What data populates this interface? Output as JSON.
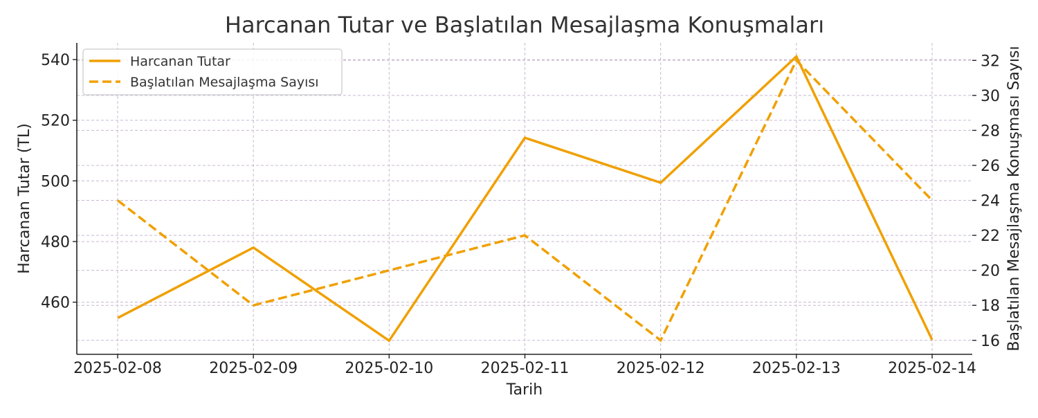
{
  "chart_data": {
    "type": "line",
    "title": "Harcanan Tutar ve Başlatılan Mesajlaşma Konuşmaları",
    "xlabel": "Tarih",
    "ylabel": "Harcanan Tutar (TL)",
    "y2label": "Başlatılan Mesajlaşma Konuşması Sayısı",
    "categories": [
      "2025-02-08",
      "2025-02-09",
      "2025-02-10",
      "2025-02-11",
      "2025-02-12",
      "2025-02-13",
      "2025-02-14"
    ],
    "ylim": [
      442.8,
      545.5
    ],
    "y2lim": [
      15.2,
      33.0
    ],
    "yticks": [
      460,
      480,
      500,
      520,
      540
    ],
    "y2ticks": [
      16,
      18,
      20,
      22,
      24,
      26,
      28,
      30,
      32
    ],
    "grid": true,
    "legend_position": "upper-left",
    "series": [
      {
        "name": "Harcanan Tutar",
        "axis": "left",
        "style": "solid",
        "color": "#f0a000",
        "values": [
          454.8,
          478.0,
          447.3,
          514.2,
          499.4,
          541.0,
          447.6
        ]
      },
      {
        "name": "Başlatılan Mesajlaşma Sayısı",
        "axis": "right",
        "style": "dashed",
        "color": "#f0a000",
        "values": [
          24,
          18,
          20,
          22,
          16,
          32,
          24
        ]
      }
    ],
    "colors": {
      "line": "#f0a000",
      "grid": "#c8b8d0",
      "axis": "#222222"
    }
  }
}
